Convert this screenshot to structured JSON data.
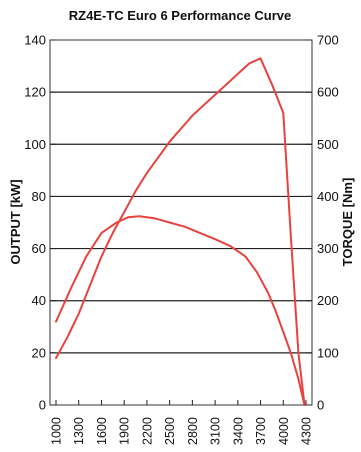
{
  "chart_data": {
    "type": "line",
    "title": "RZ4E-TC Euro 6 Performance Curve",
    "ylabel": "OUTPUT [kW]",
    "y2label": "TORQUE [Nm]",
    "x_ticks": [
      1000,
      1300,
      1600,
      1900,
      2200,
      2500,
      2800,
      3100,
      3400,
      3700,
      4000,
      4300
    ],
    "xlim": [
      1000,
      4300
    ],
    "ylim": [
      0,
      140
    ],
    "y2lim": [
      0,
      700
    ],
    "y_ticks": [
      0,
      20,
      40,
      60,
      80,
      100,
      120,
      140
    ],
    "y2_ticks": [
      0,
      100,
      200,
      300,
      400,
      500,
      600,
      700
    ],
    "grid": "horizontal",
    "line_color": "#e8423f",
    "series": [
      {
        "axis": "left",
        "x": [
          1000,
          1150,
          1300,
          1450,
          1600,
          1750,
          1900,
          2050,
          2200,
          2350,
          2500,
          2650,
          2800,
          2950,
          3100,
          3250,
          3400,
          3550,
          3700,
          3850,
          4000,
          4100,
          4200,
          4280
        ],
        "y": [
          18,
          26,
          35,
          46,
          57,
          66,
          74,
          82,
          89,
          95,
          101,
          106,
          111,
          115,
          119,
          123,
          127,
          131,
          133,
          123,
          112,
          65,
          20,
          0
        ]
      },
      {
        "axis": "right",
        "x": [
          1000,
          1200,
          1400,
          1600,
          1800,
          1950,
          2100,
          2300,
          2500,
          2700,
          2900,
          3100,
          3300,
          3500,
          3650,
          3800,
          3900,
          4000,
          4100,
          4200,
          4280
        ],
        "y": [
          160,
          225,
          285,
          330,
          350,
          360,
          362,
          358,
          350,
          342,
          330,
          318,
          305,
          285,
          255,
          215,
          180,
          140,
          100,
          50,
          0
        ]
      }
    ]
  }
}
